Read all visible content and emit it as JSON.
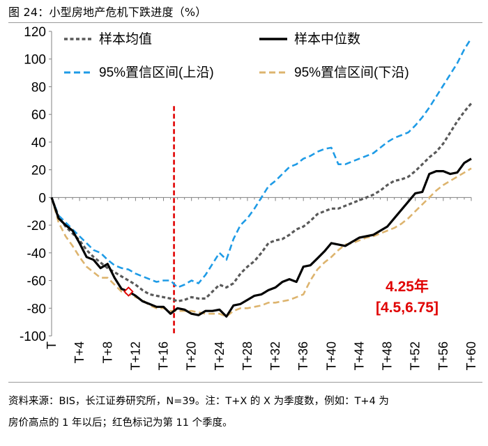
{
  "title": "图 24：小型房地产危机下跌进度（%）",
  "footnote_line1": "资料来源：BIS，长江证券研究所，N=39。注：T+X 的 X 为季度数，例如：T+4 为",
  "footnote_line2": "房价高点的 1 年以后；红色标记为第 11 个季度。",
  "colors": {
    "mean": "#595959",
    "median": "#000000",
    "upper": "#1e9be6",
    "lower": "#ddb46e",
    "vline": "#e00000",
    "annotation": "#e00000"
  },
  "chart_data": {
    "type": "line",
    "title": "小型房地产危机下跌进度（%）",
    "x_tick_labels": [
      "T",
      "T+4",
      "T+8",
      "T+12",
      "T+16",
      "T+20",
      "T+24",
      "T+28",
      "T+32",
      "T+36",
      "T+40",
      "T+44",
      "T+48",
      "T+52",
      "T+56",
      "T+60"
    ],
    "x_range": [
      0,
      60
    ],
    "ylim": [
      -100,
      120
    ],
    "y_ticks": [
      -100,
      -80,
      -60,
      -40,
      -20,
      0,
      20,
      40,
      60,
      80,
      100,
      120
    ],
    "vertical_marker_x": 17.5,
    "highlight_point": {
      "x": 11,
      "y": -68
    },
    "annotation": {
      "line1": "4.25年",
      "line2": "[4.5,6.75]"
    },
    "series": [
      {
        "name": "样本均值",
        "style": "dash-short",
        "x": [
          0,
          1,
          2,
          3,
          4,
          5,
          6,
          7,
          8,
          9,
          10,
          11,
          12,
          13,
          14,
          15,
          16,
          17,
          18,
          19,
          20,
          21,
          22,
          23,
          24,
          25,
          26,
          27,
          28,
          29,
          30,
          31,
          32,
          33,
          34,
          35,
          36,
          37,
          38,
          39,
          40,
          41,
          42,
          43,
          44,
          45,
          46,
          47,
          48,
          49,
          50,
          51,
          52,
          53,
          54,
          55,
          56,
          57,
          58,
          59,
          60
        ],
        "values": [
          0,
          -14,
          -21,
          -26,
          -31,
          -38,
          -43,
          -47,
          -51,
          -54,
          -57,
          -60,
          -63,
          -67,
          -70,
          -71,
          -72,
          -73,
          -75,
          -74,
          -72,
          -73,
          -73,
          -68,
          -63,
          -65,
          -62,
          -55,
          -50,
          -46,
          -40,
          -33,
          -31,
          -30,
          -27,
          -23,
          -21,
          -17,
          -12,
          -10,
          -8,
          -8,
          -6,
          -4,
          -2,
          0,
          2,
          5,
          9,
          12,
          13,
          15,
          19,
          24,
          29,
          33,
          39,
          47,
          55,
          62,
          68
        ]
      },
      {
        "name": "样本中位数",
        "style": "solid",
        "x": [
          0,
          1,
          2,
          3,
          4,
          5,
          6,
          7,
          8,
          9,
          10,
          11,
          12,
          13,
          14,
          15,
          16,
          17,
          18,
          19,
          20,
          21,
          22,
          23,
          24,
          25,
          26,
          27,
          28,
          29,
          30,
          31,
          32,
          33,
          34,
          35,
          36,
          37,
          38,
          39,
          40,
          41,
          42,
          43,
          44,
          45,
          46,
          47,
          48,
          49,
          50,
          51,
          52,
          53,
          54,
          55,
          56,
          57,
          58,
          59,
          60
        ],
        "values": [
          0,
          -15,
          -20,
          -24,
          -33,
          -43,
          -45,
          -51,
          -48,
          -58,
          -66,
          -68,
          -71,
          -75,
          -77,
          -79,
          -79,
          -84,
          -80,
          -81,
          -84,
          -85,
          -82,
          -82,
          -81,
          -86,
          -78,
          -77,
          -74,
          -71,
          -70,
          -67,
          -65,
          -61,
          -59,
          -61,
          -50,
          -49,
          -44,
          -39,
          -33,
          -34,
          -35,
          -32,
          -29,
          -28,
          -27,
          -24,
          -21,
          -15,
          -9,
          -3,
          3,
          4,
          17,
          19,
          19,
          17,
          18,
          25,
          28
        ]
      },
      {
        "name": "95%置信区间(上沿)",
        "style": "dash-long",
        "x": [
          0,
          1,
          2,
          3,
          4,
          5,
          6,
          7,
          8,
          9,
          10,
          11,
          12,
          13,
          14,
          15,
          16,
          17,
          18,
          19,
          20,
          21,
          22,
          23,
          24,
          25,
          26,
          27,
          28,
          29,
          30,
          31,
          32,
          33,
          34,
          35,
          36,
          37,
          38,
          39,
          40,
          41,
          42,
          43,
          44,
          45,
          46,
          47,
          48,
          49,
          50,
          51,
          52,
          53,
          54,
          55,
          56,
          57,
          58,
          59,
          60
        ],
        "values": [
          0,
          -13,
          -18,
          -23,
          -28,
          -33,
          -38,
          -40,
          -45,
          -49,
          -51,
          -52,
          -55,
          -57,
          -59,
          -61,
          -60,
          -60,
          -65,
          -63,
          -60,
          -62,
          -56,
          -48,
          -40,
          -45,
          -30,
          -20,
          -15,
          -8,
          0,
          8,
          12,
          17,
          22,
          24,
          28,
          30,
          33,
          35,
          36,
          24,
          24,
          26,
          28,
          30,
          32,
          36,
          40,
          43,
          45,
          47,
          52,
          58,
          65,
          73,
          81,
          89,
          97,
          107,
          115
        ]
      },
      {
        "name": "95%置信区间(下沿)",
        "style": "dash-long",
        "x": [
          0,
          1,
          2,
          3,
          4,
          5,
          6,
          7,
          8,
          9,
          10,
          11,
          12,
          13,
          14,
          15,
          16,
          17,
          18,
          19,
          20,
          21,
          22,
          23,
          24,
          25,
          26,
          27,
          28,
          29,
          30,
          31,
          32,
          33,
          34,
          35,
          36,
          37,
          38,
          39,
          40,
          41,
          42,
          43,
          44,
          45,
          46,
          47,
          48,
          49,
          50,
          51,
          52,
          53,
          54,
          55,
          56,
          57,
          58,
          59,
          60
        ],
        "values": [
          0,
          -18,
          -28,
          -35,
          -43,
          -50,
          -54,
          -58,
          -58,
          -63,
          -68,
          -70,
          -72,
          -74,
          -78,
          -80,
          -80,
          -82,
          -82,
          -82,
          -82,
          -83,
          -84,
          -84,
          -84,
          -86,
          -82,
          -80,
          -80,
          -79,
          -78,
          -76,
          -76,
          -75,
          -74,
          -72,
          -70,
          -60,
          -52,
          -47,
          -43,
          -38,
          -34,
          -33,
          -31,
          -29,
          -28,
          -26,
          -24,
          -22,
          -19,
          -15,
          -10,
          -5,
          0,
          5,
          9,
          12,
          15,
          18,
          21
        ]
      }
    ]
  }
}
